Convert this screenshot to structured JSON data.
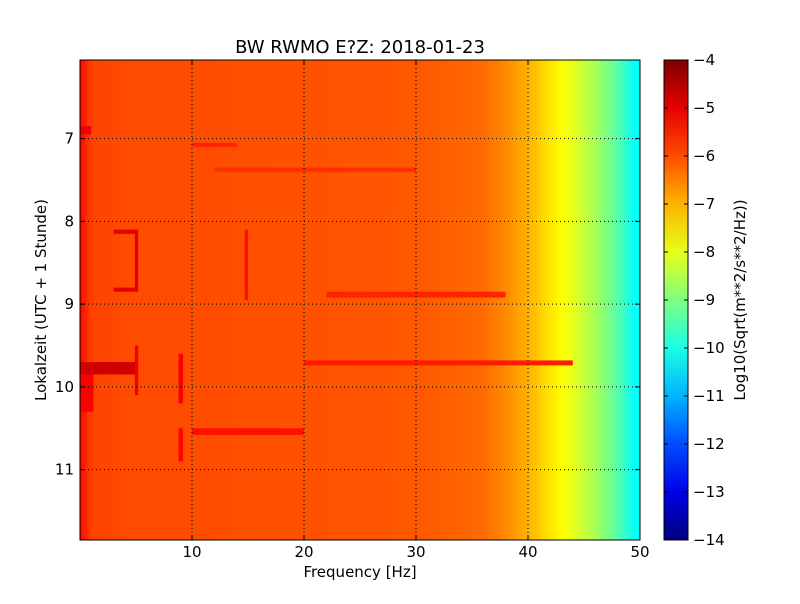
{
  "chart_data": {
    "type": "heatmap",
    "title": "BW RWMO E?Z: 2018-01-23",
    "xlabel": "Frequency [Hz]",
    "ylabel": "Lokalzeit (UTC + 1 Stunde)",
    "xlim": [
      0,
      50
    ],
    "ylim": [
      6.05,
      11.85
    ],
    "y_inverted": true,
    "x_ticks": [
      10,
      20,
      30,
      40,
      50
    ],
    "y_ticks": [
      7,
      8,
      9,
      10,
      11
    ],
    "grid": true,
    "colormap": "jet",
    "colorbar": {
      "label": "Log10(Sqrt(m**2/s**2/Hz))",
      "min": -14,
      "max": -4,
      "ticks": [
        -4,
        -5,
        -6,
        -7,
        -8,
        -9,
        -10,
        -11,
        -12,
        -13,
        -14
      ]
    },
    "spectrum_profile": {
      "frequency_hz": [
        0,
        1,
        5,
        10,
        20,
        30,
        36,
        38,
        40,
        42,
        44,
        46,
        48,
        49.5
      ],
      "log10_amplitude": [
        -5.3,
        -5.9,
        -6.0,
        -6.0,
        -6.05,
        -6.1,
        -6.3,
        -6.6,
        -7.0,
        -7.5,
        -8.0,
        -8.6,
        -9.4,
        -10.2
      ]
    },
    "features": [
      {
        "freq_hz": [
          0,
          5
        ],
        "time_h": [
          9.7,
          9.85
        ],
        "log10_amplitude": -4.8
      },
      {
        "freq_hz": [
          0,
          1.2
        ],
        "time_h": [
          9.85,
          10.3
        ],
        "log10_amplitude": -5.2
      },
      {
        "freq_hz": [
          3,
          5
        ],
        "time_h": [
          8.1,
          8.15
        ],
        "log10_amplitude": -5.0
      },
      {
        "freq_hz": [
          3,
          5
        ],
        "time_h": [
          8.8,
          8.85
        ],
        "log10_amplitude": -5.0
      },
      {
        "freq_hz": [
          4.9,
          5.2
        ],
        "time_h": [
          8.1,
          8.85
        ],
        "log10_amplitude": -5.0
      },
      {
        "freq_hz": [
          4.9,
          5.2
        ],
        "time_h": [
          9.5,
          10.1
        ],
        "log10_amplitude": -5.1
      },
      {
        "freq_hz": [
          8.8,
          9.2
        ],
        "time_h": [
          9.6,
          10.2
        ],
        "log10_amplitude": -5.2
      },
      {
        "freq_hz": [
          8.8,
          9.2
        ],
        "time_h": [
          10.5,
          10.9
        ],
        "log10_amplitude": -5.3
      },
      {
        "freq_hz": [
          14.7,
          15.0
        ],
        "time_h": [
          8.1,
          8.95
        ],
        "log10_amplitude": -5.4
      },
      {
        "freq_hz": [
          0,
          1
        ],
        "time_h": [
          6.85,
          6.95
        ],
        "log10_amplitude": -5.1
      },
      {
        "freq_hz": [
          10,
          20
        ],
        "time_h": [
          10.5,
          10.58
        ],
        "log10_amplitude": -5.4
      },
      {
        "freq_hz": [
          20,
          44
        ],
        "time_h": [
          9.68,
          9.74
        ],
        "log10_amplitude": -5.5
      },
      {
        "freq_hz": [
          22,
          38
        ],
        "time_h": [
          8.85,
          8.92
        ],
        "log10_amplitude": -5.6
      },
      {
        "freq_hz": [
          12,
          30
        ],
        "time_h": [
          7.35,
          7.4
        ],
        "log10_amplitude": -5.7
      },
      {
        "freq_hz": [
          10,
          14
        ],
        "time_h": [
          7.05,
          7.1
        ],
        "log10_amplitude": -5.6
      }
    ]
  }
}
